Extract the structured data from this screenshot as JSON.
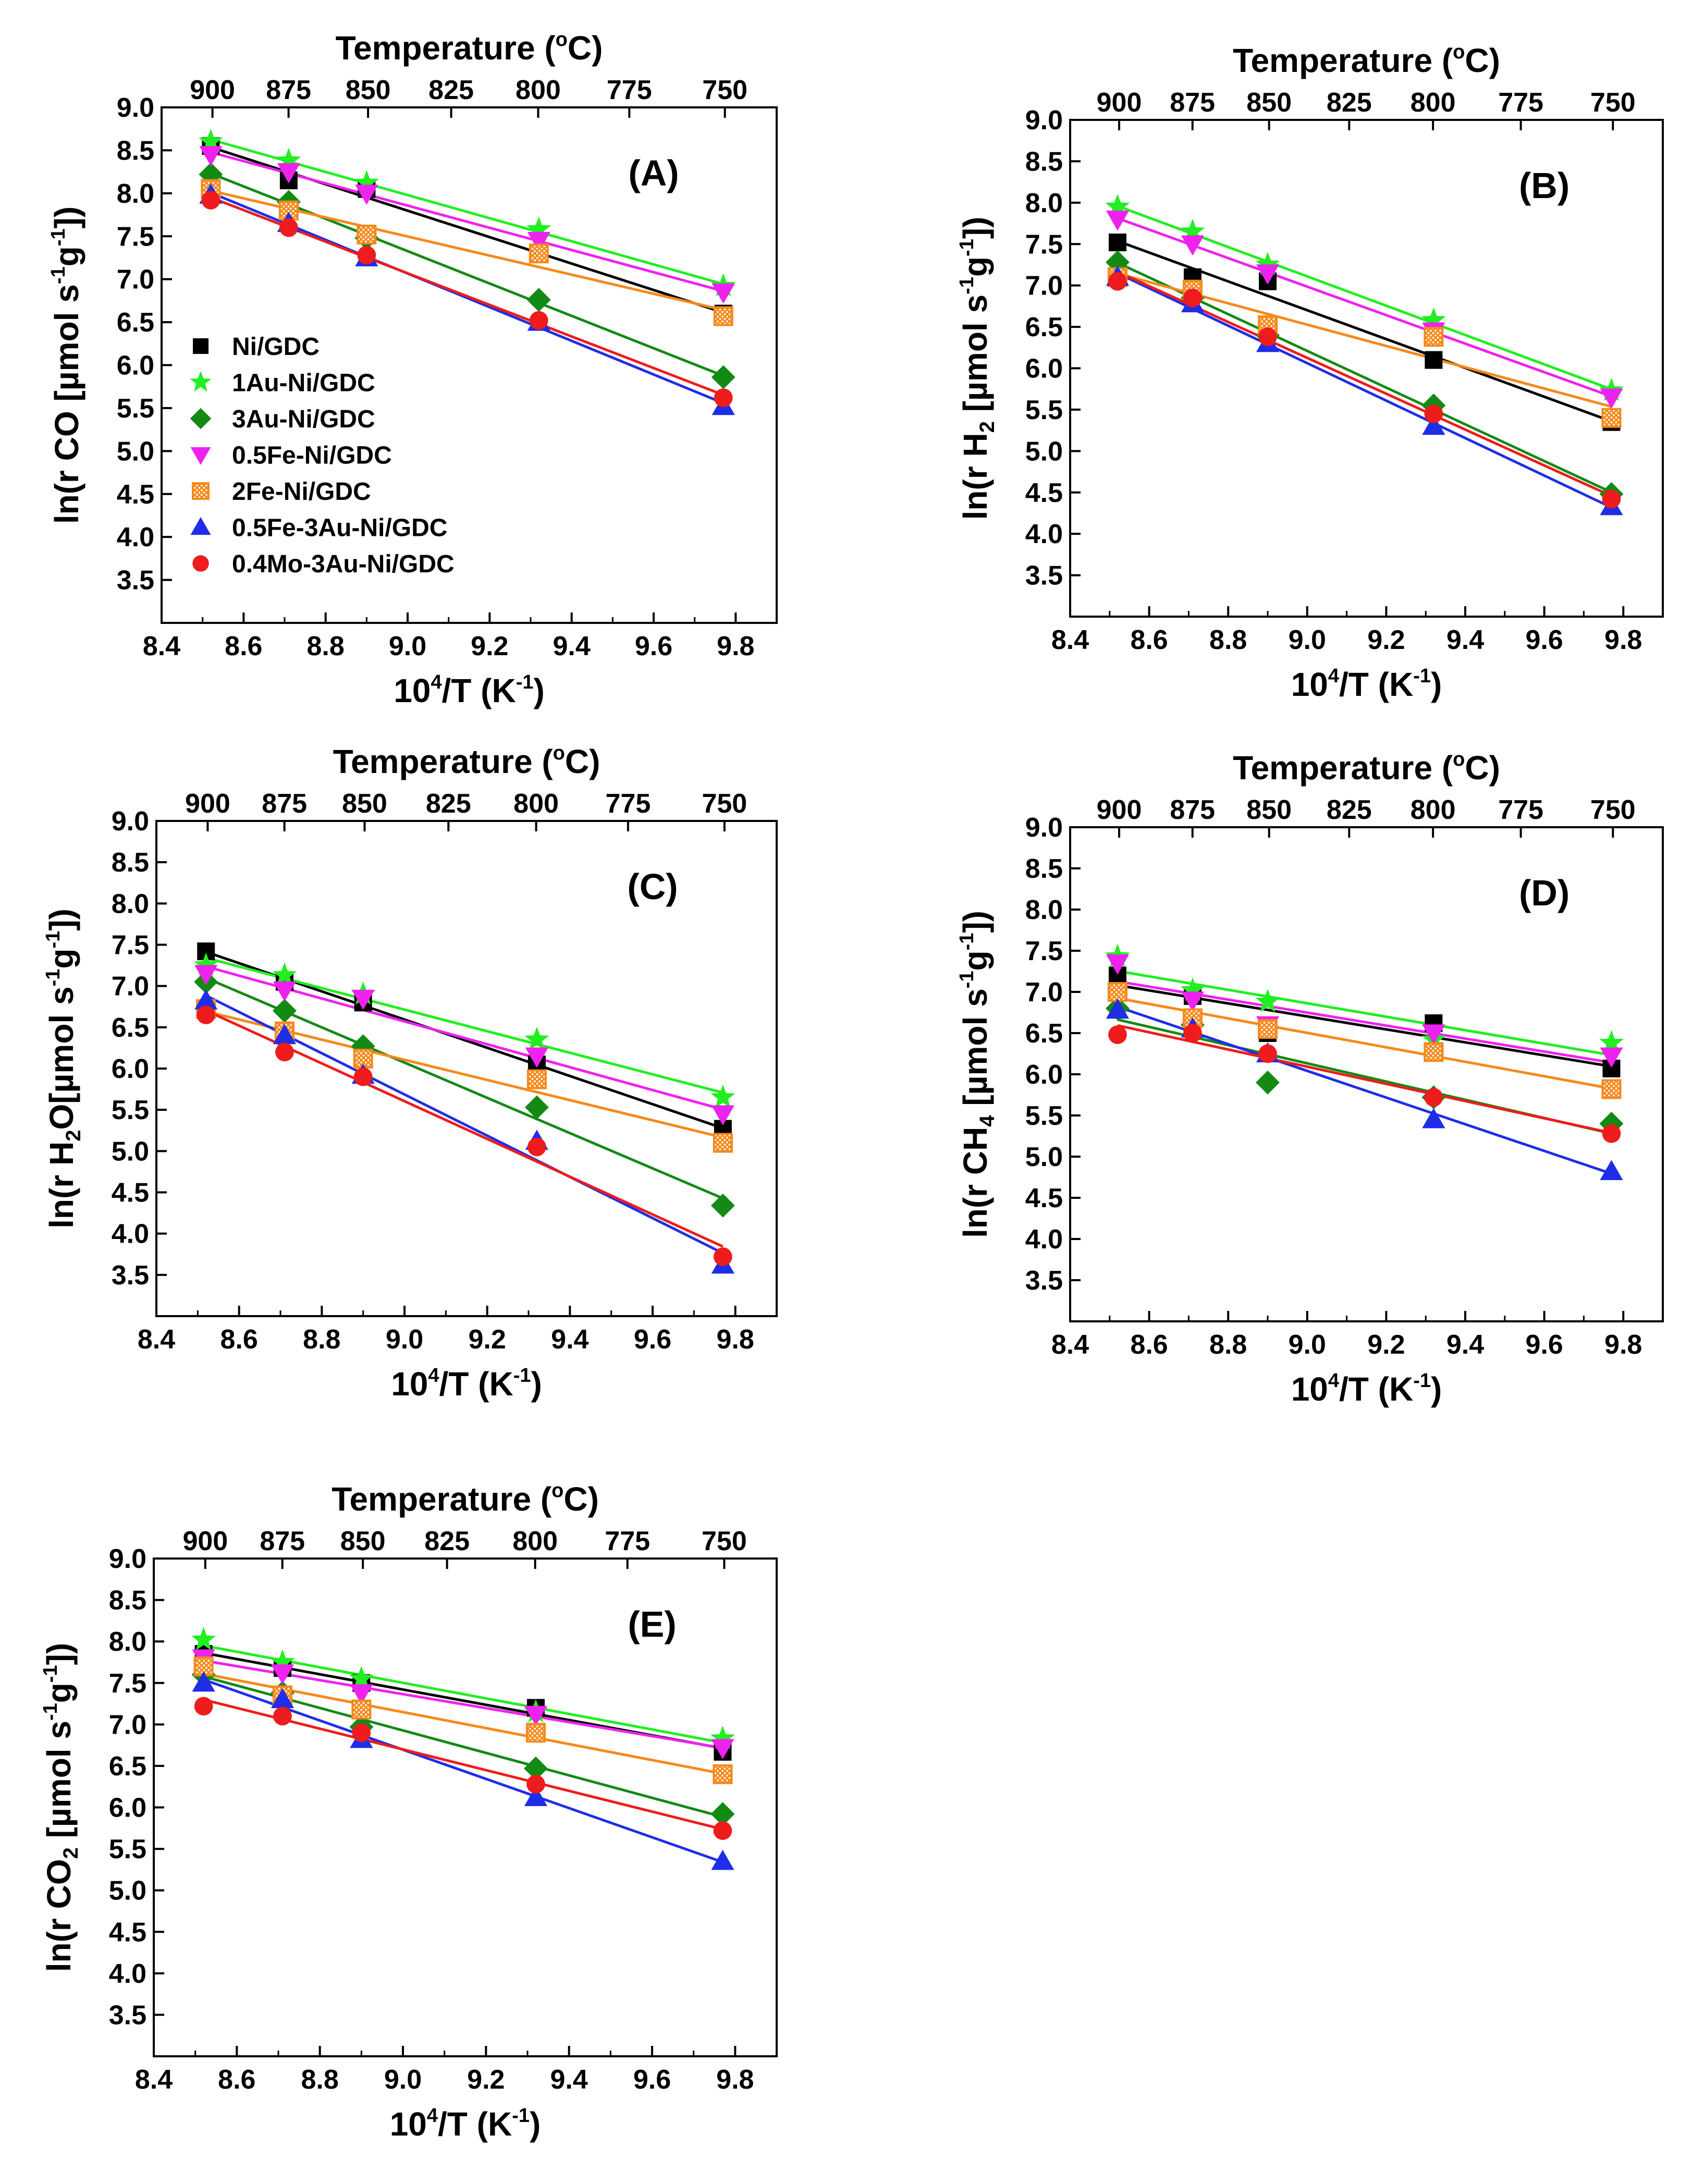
{
  "chart_data": [
    {
      "type": "scatter",
      "panel_label": "(A)",
      "title": "",
      "xlabel": {
        "pre": "10",
        "sup": "4",
        "post": "/T (K",
        "sup2": "-1",
        "post2": ")"
      },
      "ylabel": {
        "pre": "ln(r CO [µmol s",
        "sup": "-1",
        "mid": "g",
        "sup2": "-1",
        "post": "])"
      },
      "x2label": {
        "pre": "Temperature (",
        "sup": "o",
        "post": "C)"
      },
      "xlim": [
        8.4,
        9.9
      ],
      "ylim": [
        3.0,
        9.0
      ],
      "xticks": [
        "8.4",
        "8.6",
        "8.8",
        "9.0",
        "9.2",
        "9.4",
        "9.6",
        "9.8"
      ],
      "yticks": [
        "3.5",
        "4.0",
        "4.5",
        "5.0",
        "5.5",
        "6.0",
        "6.5",
        "7.0",
        "7.5",
        "8.0",
        "8.5",
        "9.0"
      ],
      "x2ticks": [
        "900",
        "875",
        "850",
        "825",
        "800",
        "775",
        "750"
      ],
      "legend": true,
      "legend_position": "left",
      "x": [
        8.52,
        8.71,
        8.9,
        9.32,
        9.77
      ],
      "series": [
        {
          "name": "Ni/GDC",
          "values": [
            8.55,
            8.15,
            8.05,
            7.3,
            6.6
          ]
        },
        {
          "name": "1Au-Ni/GDC",
          "values": [
            8.6,
            8.38,
            8.12,
            7.58,
            6.92
          ]
        },
        {
          "name": "3Au-Ni/GDC",
          "values": [
            8.22,
            7.9,
            7.48,
            6.76,
            5.86
          ]
        },
        {
          "name": "0.5Fe-Ni/GDC",
          "values": [
            8.45,
            8.25,
            8.0,
            7.45,
            6.85
          ]
        },
        {
          "name": "2Fe-Ni/GDC",
          "values": [
            8.05,
            7.8,
            7.52,
            7.3,
            6.57
          ]
        },
        {
          "name": "0.5Fe-3Au-Ni/GDC",
          "values": [
            7.98,
            7.65,
            7.25,
            6.5,
            5.52
          ]
        },
        {
          "name": "0.4Mo-3Au-Ni/GDC",
          "values": [
            7.92,
            7.6,
            7.28,
            6.52,
            5.62
          ]
        }
      ]
    },
    {
      "type": "scatter",
      "panel_label": "(B)",
      "title": "",
      "xlabel": {
        "pre": "10",
        "sup": "4",
        "post": "/T (K",
        "sup2": "-1",
        "post2": ")"
      },
      "ylabel": {
        "pre": "ln(r H",
        "sub": "2",
        "post": " [µmol s",
        "sup": "-1",
        "mid": "g",
        "sup2": "-1",
        "post2": "])"
      },
      "x2label": {
        "pre": "Temperature (",
        "sup": "o",
        "post": "C)"
      },
      "xlim": [
        8.4,
        9.9
      ],
      "ylim": [
        3.0,
        9.0
      ],
      "xticks": [
        "8.4",
        "8.6",
        "8.8",
        "9.0",
        "9.2",
        "9.4",
        "9.6",
        "9.8"
      ],
      "yticks": [
        "3.5",
        "4.0",
        "4.5",
        "5.0",
        "5.5",
        "6.0",
        "6.5",
        "7.0",
        "7.5",
        "8.0",
        "8.5",
        "9.0"
      ],
      "x2ticks": [
        "900",
        "875",
        "850",
        "825",
        "800",
        "775",
        "750"
      ],
      "legend": false,
      "x": [
        8.52,
        8.71,
        8.9,
        9.32,
        9.77
      ],
      "series": [
        {
          "name": "Ni/GDC",
          "values": [
            7.52,
            7.1,
            7.05,
            6.1,
            5.35
          ]
        },
        {
          "name": "1Au-Ni/GDC",
          "values": [
            7.95,
            7.65,
            7.25,
            6.58,
            5.73
          ]
        },
        {
          "name": "3Au-Ni/GDC",
          "values": [
            7.28,
            6.85,
            6.4,
            5.55,
            4.48
          ]
        },
        {
          "name": "0.5Fe-Ni/GDC",
          "values": [
            7.8,
            7.5,
            7.15,
            6.45,
            5.65
          ]
        },
        {
          "name": "2Fe-Ni/GDC",
          "values": [
            7.1,
            6.95,
            6.52,
            6.38,
            5.4
          ]
        },
        {
          "name": "0.5Fe-3Au-Ni/GDC",
          "values": [
            7.1,
            6.78,
            6.3,
            5.3,
            4.33
          ]
        },
        {
          "name": "0.4Mo-3Au-Ni/GDC",
          "values": [
            7.05,
            6.85,
            6.38,
            5.45,
            4.42
          ]
        }
      ]
    },
    {
      "type": "scatter",
      "panel_label": "(C)",
      "title": "",
      "xlabel": {
        "pre": "10",
        "sup": "4",
        "post": "/T (K",
        "sup2": "-1",
        "post2": ")"
      },
      "ylabel": {
        "pre": "ln(r H",
        "sub": "2",
        "post": "O[µmol s",
        "sup": "-1",
        "mid": "g",
        "sup2": "-1",
        "post2": "])"
      },
      "x2label": {
        "pre": "Temperature (",
        "sup": "o",
        "post": "C)"
      },
      "xlim": [
        8.4,
        9.9
      ],
      "ylim": [
        3.0,
        9.0
      ],
      "xticks": [
        "8.4",
        "8.6",
        "8.8",
        "9.0",
        "9.2",
        "9.4",
        "9.6",
        "9.8"
      ],
      "yticks": [
        "3.5",
        "4.0",
        "4.5",
        "5.0",
        "5.5",
        "6.0",
        "6.5",
        "7.0",
        "7.5",
        "8.0",
        "8.5",
        "9.0"
      ],
      "x2ticks": [
        "900",
        "875",
        "850",
        "825",
        "800",
        "775",
        "750"
      ],
      "legend": false,
      "x": [
        8.52,
        8.71,
        8.9,
        9.32,
        9.77
      ],
      "series": [
        {
          "name": "Ni/GDC",
          "values": [
            7.42,
            7.05,
            6.8,
            6.05,
            5.27
          ]
        },
        {
          "name": "1Au-Ni/GDC",
          "values": [
            7.25,
            7.13,
            6.9,
            6.35,
            5.65
          ]
        },
        {
          "name": "3Au-Ni/GDC",
          "values": [
            7.05,
            6.7,
            6.27,
            5.53,
            4.34
          ]
        },
        {
          "name": "0.5Fe-Ni/GDC",
          "values": [
            7.15,
            6.95,
            6.85,
            6.15,
            5.45
          ]
        },
        {
          "name": "2Fe-Ni/GDC",
          "values": [
            6.72,
            6.45,
            6.12,
            5.87,
            5.1
          ]
        },
        {
          "name": "0.5Fe-3Au-Ni/GDC",
          "values": [
            6.82,
            6.4,
            5.92,
            5.12,
            3.62
          ]
        },
        {
          "name": "0.4Mo-3Au-Ni/GDC",
          "values": [
            6.65,
            6.2,
            5.9,
            5.05,
            3.72
          ]
        }
      ]
    },
    {
      "type": "scatter",
      "panel_label": "(D)",
      "title": "",
      "xlabel": {
        "pre": "10",
        "sup": "4",
        "post": "/T (K",
        "sup2": "-1",
        "post2": ")"
      },
      "ylabel": {
        "pre": "ln(r CH",
        "sub": "4",
        "post": " [µmol s",
        "sup": "-1",
        "mid": "g",
        "sup2": "-1",
        "post2": "])"
      },
      "x2label": {
        "pre": "Temperature (",
        "sup": "o",
        "post": "C)"
      },
      "xlim": [
        8.4,
        9.9
      ],
      "ylim": [
        3.0,
        9.0
      ],
      "xticks": [
        "8.4",
        "8.6",
        "8.8",
        "9.0",
        "9.2",
        "9.4",
        "9.6",
        "9.8"
      ],
      "yticks": [
        "3.5",
        "4.0",
        "4.5",
        "5.0",
        "5.5",
        "6.0",
        "6.5",
        "7.0",
        "7.5",
        "8.0",
        "8.5",
        "9.0"
      ],
      "x2ticks": [
        "900",
        "875",
        "850",
        "825",
        "800",
        "775",
        "750"
      ],
      "legend": false,
      "x": [
        8.52,
        8.71,
        8.9,
        9.32,
        9.77
      ],
      "series": [
        {
          "name": "Ni/GDC",
          "values": [
            7.2,
            6.95,
            6.5,
            6.62,
            6.07
          ]
        },
        {
          "name": "1Au-Ni/GDC",
          "values": [
            7.43,
            7.02,
            6.88,
            6.42,
            6.38
          ]
        },
        {
          "name": "3Au-Ni/GDC",
          "values": [
            6.8,
            6.6,
            5.9,
            5.72,
            5.4
          ]
        },
        {
          "name": "0.5Fe-Ni/GDC",
          "values": [
            7.35,
            6.9,
            6.6,
            6.5,
            6.22
          ]
        },
        {
          "name": "2Fe-Ni/GDC",
          "values": [
            7.0,
            6.68,
            6.55,
            6.27,
            5.82
          ]
        },
        {
          "name": "0.5Fe-3Au-Ni/GDC",
          "values": [
            6.78,
            6.55,
            6.25,
            5.45,
            4.82
          ]
        },
        {
          "name": "0.4Mo-3Au-Ni/GDC",
          "values": [
            6.48,
            6.5,
            6.25,
            5.72,
            5.28
          ]
        }
      ]
    },
    {
      "type": "scatter",
      "panel_label": "(E)",
      "title": "",
      "xlabel": {
        "pre": "10",
        "sup": "4",
        "post": "/T (K",
        "sup2": "-1",
        "post2": ")"
      },
      "ylabel": {
        "pre": "ln(r CO",
        "sub": "2",
        "post": " [µmol s",
        "sup": "-1",
        "mid": "g",
        "sup2": "-1",
        "post2": "])"
      },
      "x2label": {
        "pre": "Temperature (",
        "sup": "o",
        "post": "C)"
      },
      "xlim": [
        8.4,
        9.9
      ],
      "ylim": [
        3.0,
        9.0
      ],
      "xticks": [
        "8.4",
        "8.6",
        "8.8",
        "9.0",
        "9.2",
        "9.4",
        "9.6",
        "9.8"
      ],
      "yticks": [
        "3.5",
        "4.0",
        "4.5",
        "5.0",
        "5.5",
        "6.0",
        "6.5",
        "7.0",
        "7.5",
        "8.0",
        "8.5",
        "9.0"
      ],
      "x2ticks": [
        "900",
        "875",
        "850",
        "825",
        "800",
        "775",
        "750"
      ],
      "legend": false,
      "x": [
        8.52,
        8.71,
        8.9,
        9.32,
        9.77
      ],
      "series": [
        {
          "name": "Ni/GDC",
          "values": [
            7.85,
            7.68,
            7.5,
            7.2,
            6.67
          ]
        },
        {
          "name": "1Au-Ni/GDC",
          "values": [
            8.02,
            7.75,
            7.55,
            7.15,
            6.83
          ]
        },
        {
          "name": "3Au-Ni/GDC",
          "values": [
            7.6,
            7.38,
            6.97,
            6.47,
            5.92
          ]
        },
        {
          "name": "0.5Fe-Ni/GDC",
          "values": [
            7.8,
            7.62,
            7.38,
            7.12,
            6.72
          ]
        },
        {
          "name": "2Fe-Ni/GDC",
          "values": [
            7.7,
            7.35,
            7.18,
            6.9,
            6.4
          ]
        },
        {
          "name": "0.5Fe-3Au-Ni/GDC",
          "values": [
            7.5,
            7.3,
            6.82,
            6.12,
            5.35
          ]
        },
        {
          "name": "0.4Mo-3Au-Ni/GDC",
          "values": [
            7.22,
            7.1,
            6.9,
            6.28,
            5.72
          ]
        }
      ]
    }
  ],
  "series_style": [
    {
      "color": "#000000",
      "marker": "square"
    },
    {
      "color": "#22ee22",
      "marker": "star"
    },
    {
      "color": "#138a13",
      "marker": "diamond"
    },
    {
      "color": "#ee22ee",
      "marker": "triangle-down"
    },
    {
      "color": "#f5891c",
      "marker": "hatched-square"
    },
    {
      "color": "#1f2de6",
      "marker": "triangle-up"
    },
    {
      "color": "#ee1c1c",
      "marker": "circle"
    }
  ]
}
